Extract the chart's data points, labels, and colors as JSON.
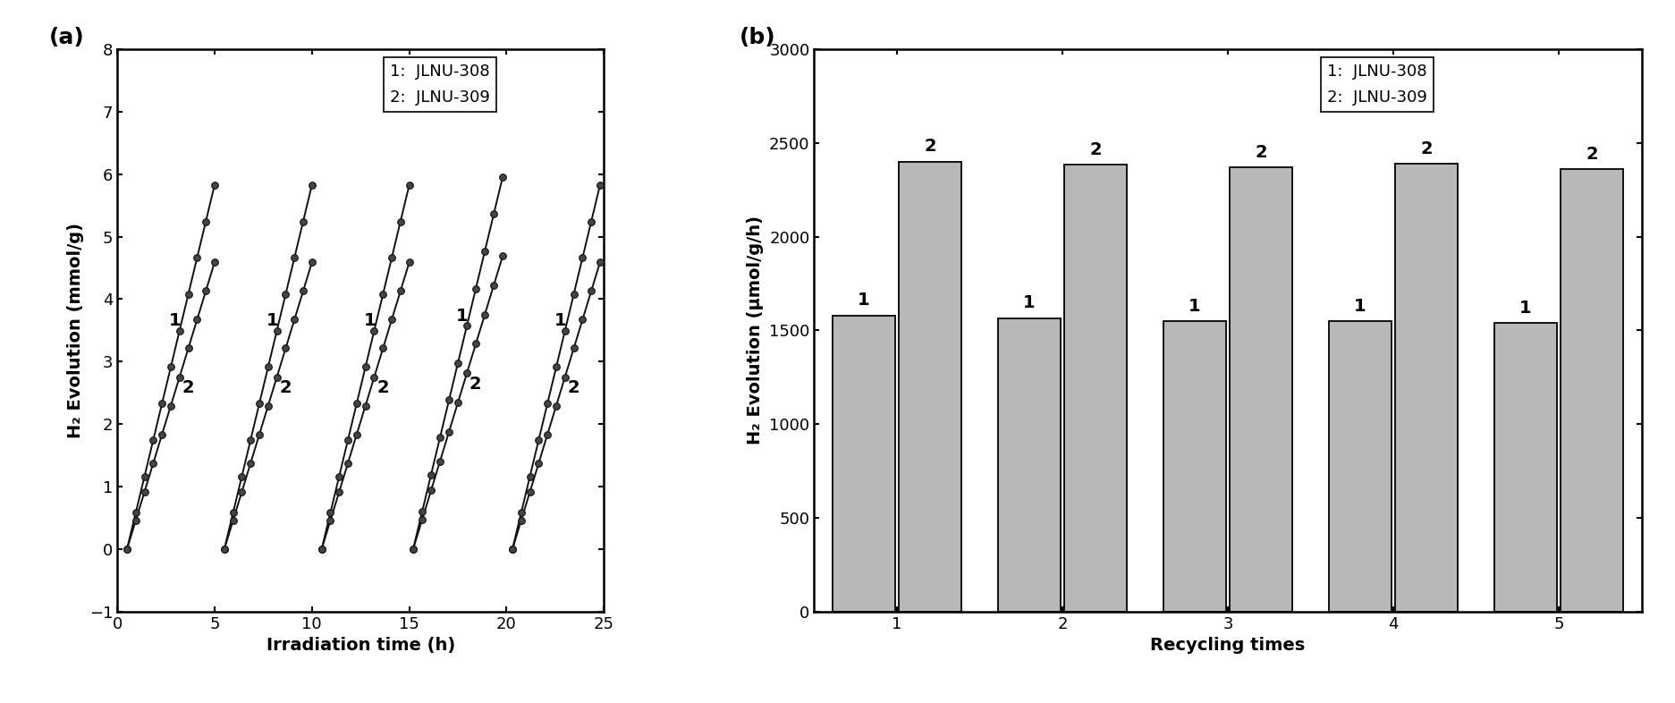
{
  "panel_a": {
    "xlabel": "Irradiation time (h)",
    "ylabel": "H₂ Evolution (mmol/g)",
    "xlim": [
      0,
      25
    ],
    "ylim": [
      -1,
      8
    ],
    "yticks": [
      -1,
      0,
      1,
      2,
      3,
      4,
      5,
      6,
      7,
      8
    ],
    "xticks": [
      0,
      5,
      10,
      15,
      20,
      25
    ],
    "cycles": [
      {
        "start": 0.5,
        "end": 5.0
      },
      {
        "start": 5.5,
        "end": 10.0
      },
      {
        "start": 10.5,
        "end": 15.0
      },
      {
        "start": 15.2,
        "end": 19.8
      },
      {
        "start": 20.3,
        "end": 24.8
      }
    ],
    "slope1": 1.295,
    "slope2": 1.02,
    "n_points": 11,
    "legend": [
      "1:  JLNU-308",
      "2:  JLNU-309"
    ],
    "line_color": "#111111",
    "marker_facecolor": "#444444",
    "marker_edgecolor": "#111111"
  },
  "panel_b": {
    "xlabel": "Recycling times",
    "ylabel": "H₂ Evolution (μmol/g/h)",
    "xlim": [
      0.5,
      5.5
    ],
    "ylim": [
      0,
      3000
    ],
    "yticks": [
      0,
      500,
      1000,
      1500,
      2000,
      2500,
      3000
    ],
    "xticks": [
      1,
      2,
      3,
      4,
      5
    ],
    "bar_width": 0.38,
    "bar_gap": 0.02,
    "values_1": [
      1580,
      1565,
      1550,
      1550,
      1540
    ],
    "values_2": [
      2400,
      2385,
      2370,
      2390,
      2360
    ],
    "bar_color": "#b8b8b8",
    "bar_edgecolor": "#111111",
    "legend": [
      "1:  JLNU-308",
      "2:  JLNU-309"
    ]
  },
  "background_color": "#ffffff",
  "label_fontsize": 14,
  "tick_fontsize": 13,
  "legend_fontsize": 13,
  "annotation_fontsize": 14,
  "panel_label_fontsize": 18
}
